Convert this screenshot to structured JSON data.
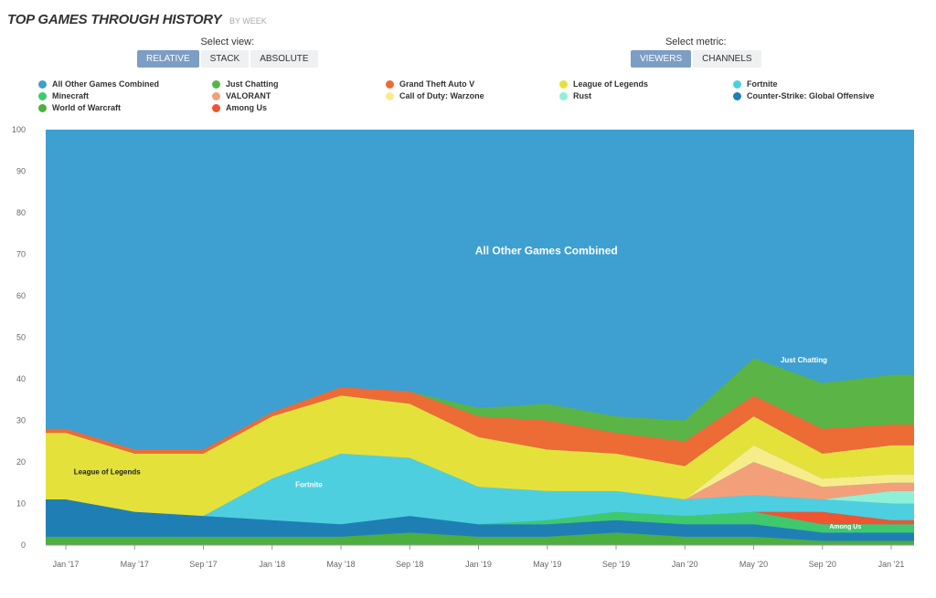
{
  "header": {
    "title": "TOP GAMES THROUGH HISTORY",
    "subtitle": "BY WEEK"
  },
  "view_control": {
    "label": "Select view:",
    "options": [
      "RELATIVE",
      "STACK",
      "ABSOLUTE"
    ],
    "selected": "RELATIVE"
  },
  "metric_control": {
    "label": "Select metric:",
    "options": [
      "VIEWERS",
      "CHANNELS"
    ],
    "selected": "VIEWERS"
  },
  "chart_data": {
    "type": "area",
    "stacked": true,
    "relative": true,
    "ylim": [
      0,
      100
    ],
    "y_ticks": [
      0,
      10,
      20,
      30,
      40,
      50,
      60,
      70,
      80,
      90,
      100
    ],
    "x_tick_labels": [
      "Jan '17",
      "May '17",
      "Sep '17",
      "Jan '18",
      "May '18",
      "Sep '18",
      "Jan '19",
      "May '19",
      "Sep '19",
      "Jan '20",
      "May '20",
      "Sep '20",
      "Jan '21"
    ],
    "x": [
      "Jan '17",
      "May '17",
      "Sep '17",
      "Jan '18",
      "May '18",
      "Sep '18",
      "Jan '19",
      "May '19",
      "Sep '19",
      "Jan '20",
      "May '20",
      "Sep '20",
      "Jan '21"
    ],
    "legend": [
      {
        "name": "All Other Games Combined",
        "color": "#3e9fd1"
      },
      {
        "name": "Just Chatting",
        "color": "#5ab546"
      },
      {
        "name": "Grand Theft Auto V",
        "color": "#ed6b34"
      },
      {
        "name": "League of Legends",
        "color": "#e4e23a"
      },
      {
        "name": "Fortnite",
        "color": "#4dcfe0"
      },
      {
        "name": "Minecraft",
        "color": "#3ec96f"
      },
      {
        "name": "VALORANT",
        "color": "#f3a07a"
      },
      {
        "name": "Call of Duty: Warzone",
        "color": "#f7ec8a"
      },
      {
        "name": "Rust",
        "color": "#8ff0d8"
      },
      {
        "name": "Counter-Strike: Global Offensive",
        "color": "#1f7fb5"
      },
      {
        "name": "World of Warcraft",
        "color": "#4caf3e"
      },
      {
        "name": "Among Us",
        "color": "#ef5530"
      }
    ],
    "series": [
      {
        "name": "World of Warcraft",
        "color": "#4caf3e",
        "values": [
          2,
          2,
          2,
          2,
          2,
          3,
          2,
          2,
          3,
          2,
          2,
          1,
          1
        ]
      },
      {
        "name": "Counter-Strike: Global Offensive",
        "color": "#1f7fb5",
        "values": [
          9,
          6,
          5,
          4,
          3,
          4,
          3,
          3,
          3,
          3,
          3,
          2,
          2
        ]
      },
      {
        "name": "Minecraft",
        "color": "#3ec96f",
        "values": [
          0,
          0,
          0,
          0,
          0,
          0,
          0,
          1,
          2,
          2,
          3,
          2,
          2
        ]
      },
      {
        "name": "Among Us",
        "color": "#ef5530",
        "values": [
          0,
          0,
          0,
          0,
          0,
          0,
          0,
          0,
          0,
          0,
          0,
          3,
          1
        ]
      },
      {
        "name": "Fortnite",
        "color": "#4dcfe0",
        "values": [
          0,
          0,
          0,
          10,
          17,
          14,
          9,
          7,
          5,
          4,
          4,
          3,
          4
        ]
      },
      {
        "name": "Rust",
        "color": "#8ff0d8",
        "values": [
          0,
          0,
          0,
          0,
          0,
          0,
          0,
          0,
          0,
          0,
          0,
          0,
          3
        ]
      },
      {
        "name": "VALORANT",
        "color": "#f3a07a",
        "values": [
          0,
          0,
          0,
          0,
          0,
          0,
          0,
          0,
          0,
          0,
          8,
          3,
          2
        ]
      },
      {
        "name": "Call of Duty: Warzone",
        "color": "#f7ec8a",
        "values": [
          0,
          0,
          0,
          0,
          0,
          0,
          0,
          0,
          0,
          0,
          4,
          2,
          2
        ]
      },
      {
        "name": "League of Legends",
        "color": "#e4e23a",
        "values": [
          16,
          14,
          15,
          15,
          14,
          13,
          12,
          10,
          9,
          8,
          7,
          6,
          7
        ]
      },
      {
        "name": "Grand Theft Auto V",
        "color": "#ed6b34",
        "values": [
          1,
          1,
          1,
          1,
          2,
          3,
          5,
          7,
          5,
          6,
          5,
          6,
          5
        ]
      },
      {
        "name": "Just Chatting",
        "color": "#5ab546",
        "values": [
          0,
          0,
          0,
          0,
          0,
          0,
          2,
          4,
          4,
          5,
          9,
          11,
          12
        ]
      },
      {
        "name": "All Other Games Combined",
        "color": "#3e9fd1",
        "values": [
          72,
          77,
          77,
          68,
          62,
          63,
          67,
          66,
          69,
          70,
          55,
          61,
          59
        ]
      }
    ],
    "annotations": [
      {
        "text": "All Other Games Combined",
        "x": "Jan '18",
        "y": 70,
        "color": "#ffffff"
      },
      {
        "text": "League of Legends",
        "x": "May '17",
        "y": 17,
        "color": "#222222"
      },
      {
        "text": "Fortnite",
        "x": "May '18",
        "y": 14,
        "color": "#ffffff"
      },
      {
        "text": "Just Chatting",
        "x": "May '20",
        "y": 44,
        "color": "#ffffff"
      },
      {
        "text": "Among Us",
        "x": "Sep '20",
        "y": 4,
        "color": "#ffffff"
      }
    ]
  }
}
